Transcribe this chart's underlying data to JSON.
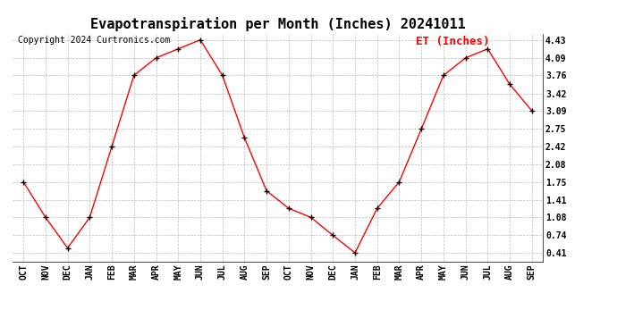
{
  "title": "Evapotranspiration per Month (Inches) 20241011",
  "copyright": "Copyright 2024 Curtronics.com",
  "legend_label": "ET (Inches)",
  "months": [
    "OCT",
    "NOV",
    "DEC",
    "JAN",
    "FEB",
    "MAR",
    "APR",
    "MAY",
    "JUN",
    "JUL",
    "AUG",
    "SEP",
    "OCT",
    "NOV",
    "DEC",
    "JAN",
    "FEB",
    "MAR",
    "APR",
    "MAY",
    "JUN",
    "JUL",
    "AUG",
    "SEP"
  ],
  "values": [
    1.75,
    1.08,
    0.5,
    1.08,
    2.42,
    3.76,
    4.09,
    4.26,
    4.43,
    3.76,
    2.58,
    1.58,
    1.25,
    1.08,
    0.74,
    0.41,
    1.25,
    1.75,
    2.75,
    3.76,
    4.09,
    4.26,
    3.59,
    3.09
  ],
  "yticks": [
    0.41,
    0.74,
    1.08,
    1.41,
    1.75,
    2.08,
    2.42,
    2.75,
    3.09,
    3.42,
    3.76,
    4.09,
    4.43
  ],
  "ymin": 0.25,
  "ymax": 4.55,
  "line_color": "red",
  "marker_color": "black",
  "grid_color": "#bbbbbb",
  "bg_color": "#ffffff",
  "title_fontsize": 11,
  "copyright_fontsize": 7,
  "legend_fontsize": 9,
  "tick_fontsize": 7,
  "marker_size": 4
}
